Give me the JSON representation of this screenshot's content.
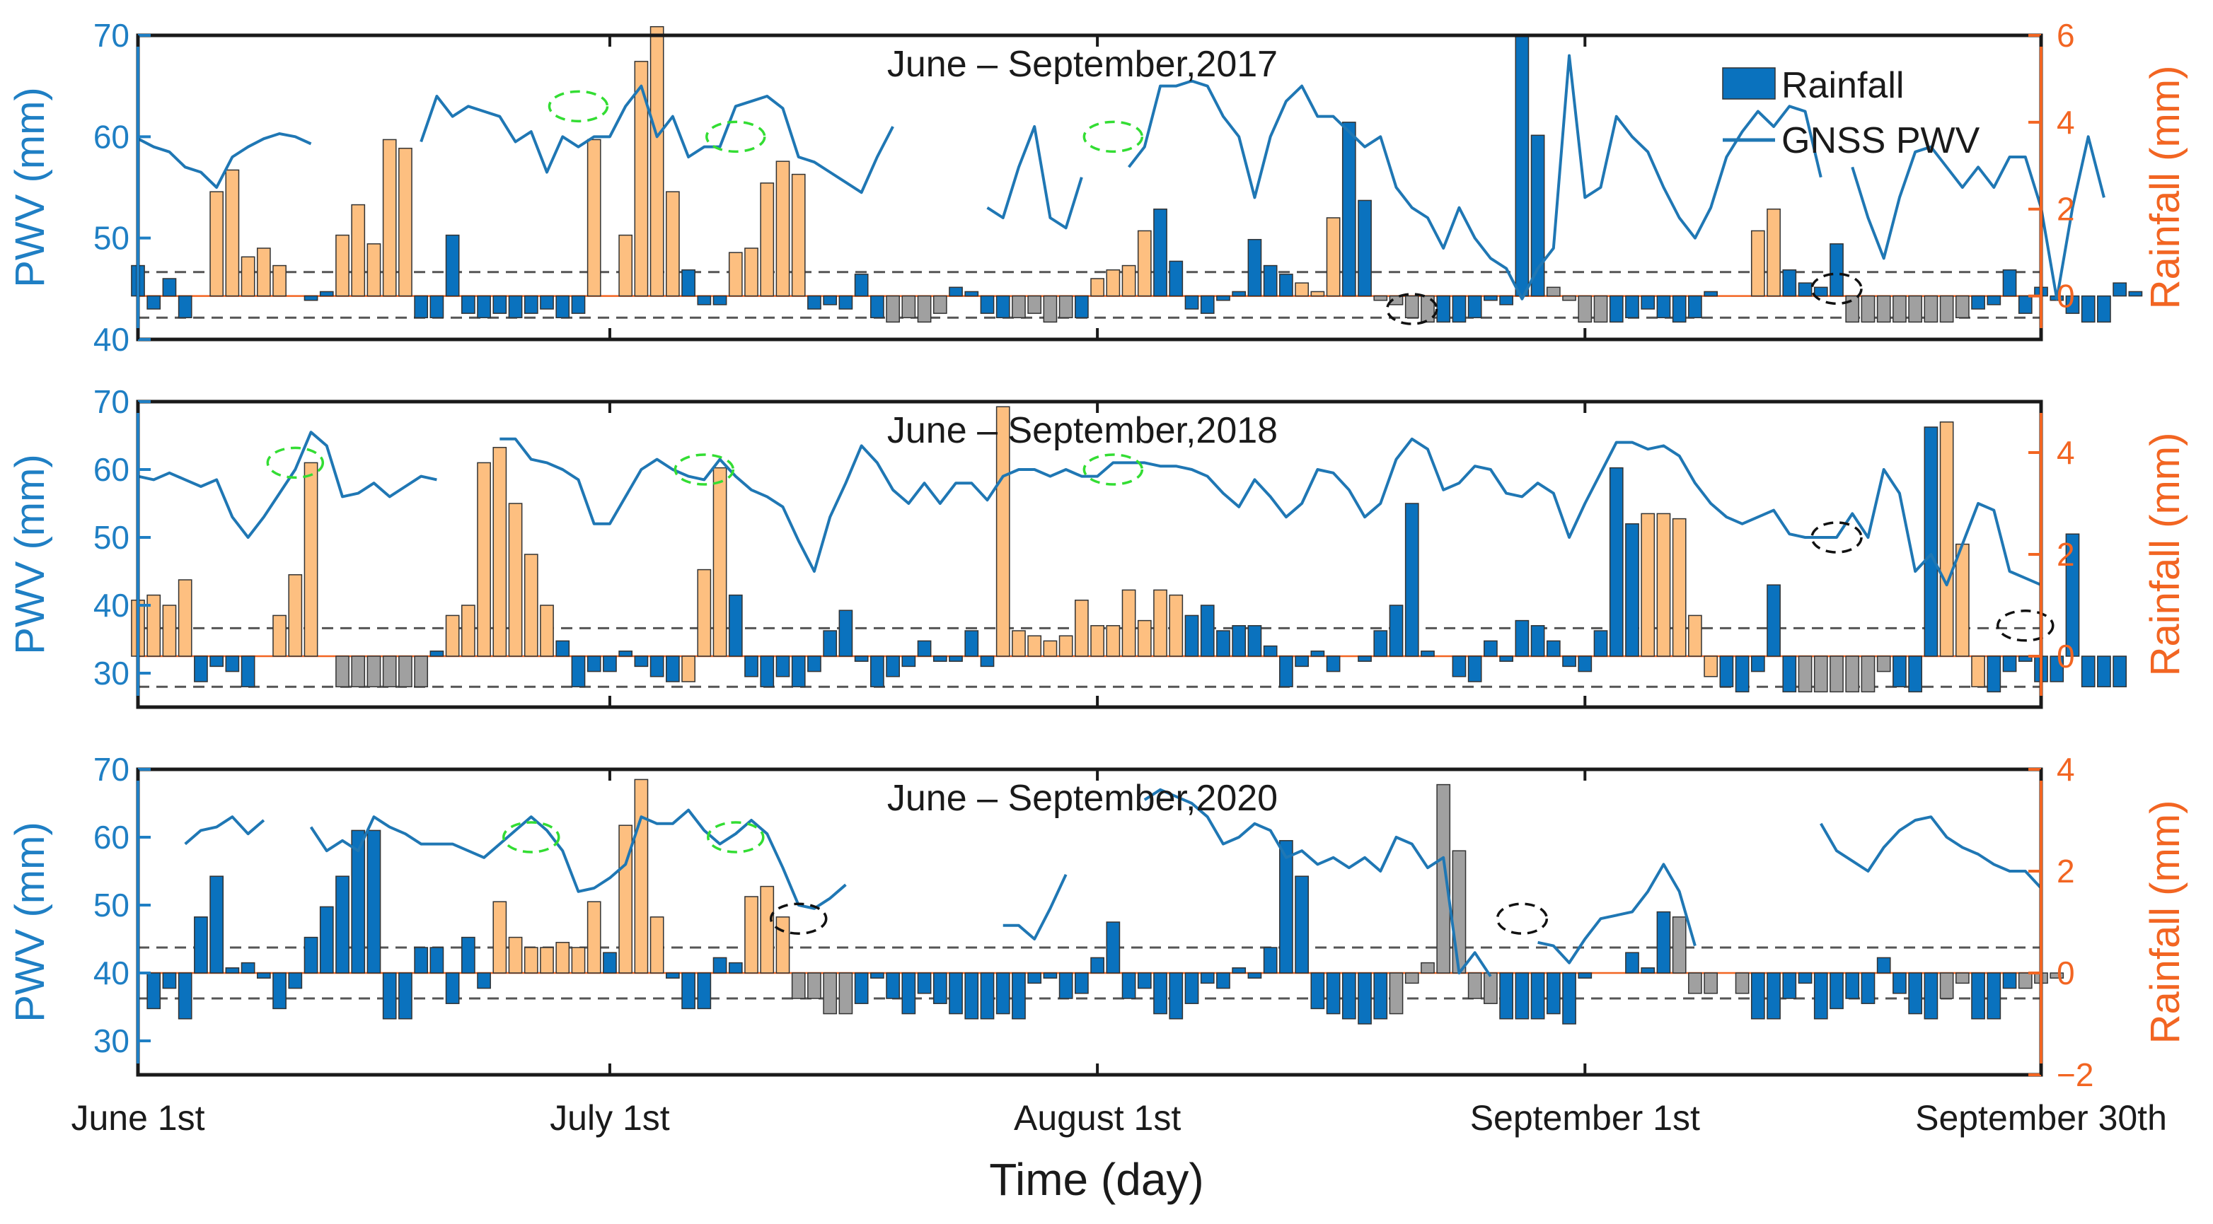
{
  "colors": {
    "left_axis": "#1f7fc4",
    "right_axis": "#f26522",
    "normal_bar": "#0a72be",
    "wet_bar": "#fdbf80",
    "dry_bar": "#a0a0a0",
    "line": "#1f77b4",
    "wet_ellipse": "#33dd33",
    "dry_ellipse": "#111111"
  },
  "xaxis": {
    "label": "Time (day)",
    "ticks": [
      {
        "day": 1,
        "label": "June 1st"
      },
      {
        "day": 31,
        "label": "July 1st"
      },
      {
        "day": 62,
        "label": "August 1st"
      },
      {
        "day": 93,
        "label": "September 1st"
      },
      {
        "day": 122,
        "label": "September 30th"
      }
    ]
  },
  "chart_data": [
    {
      "type": "bar+line",
      "title": "June – September,2017",
      "ylabel_left": "PWV (mm)",
      "ylabel_right": "Rainfall (mm)",
      "ylim_left": [
        40,
        70
      ],
      "yticks_left": [
        "40",
        "50",
        "60",
        "70"
      ],
      "ylim_right": [
        -1,
        6
      ],
      "yticks_right": [
        "0",
        "2",
        "4",
        "6"
      ],
      "thresholds": [
        0.55,
        -0.5
      ],
      "legend": [
        "Rainfall",
        "GNSS PWV"
      ],
      "x": [
        1,
        122
      ],
      "rainfall": [
        0.7,
        -0.3,
        0.4,
        -0.5,
        0,
        2.4,
        2.9,
        0.9,
        1.1,
        0.7,
        0,
        -0.1,
        0.1,
        1.4,
        2.1,
        1.2,
        3.6,
        3.4,
        -0.5,
        -0.5,
        1.4,
        -0.4,
        -0.5,
        -0.4,
        -0.5,
        -0.4,
        -0.3,
        -0.5,
        -0.4,
        3.6,
        0,
        1.4,
        5.4,
        6.2,
        2.4,
        0.6,
        -0.2,
        -0.2,
        1.0,
        1.1,
        2.6,
        3.1,
        2.8,
        -0.3,
        -0.2,
        -0.3,
        0.5,
        -0.5,
        -0.6,
        -0.5,
        -0.6,
        -0.4,
        0.2,
        0.1,
        -0.4,
        -0.5,
        -0.5,
        -0.4,
        -0.6,
        -0.5,
        -0.5,
        0.4,
        0.6,
        0.7,
        1.5,
        2.0,
        0.8,
        -0.3,
        -0.4,
        -0.1,
        0.1,
        1.3,
        0.7,
        0.5,
        0.3,
        0.1,
        1.8,
        4.0,
        2.2,
        -0.1,
        -0.2,
        -0.5,
        -0.6,
        -0.6,
        -0.6,
        -0.5,
        -0.1,
        -0.2,
        6.0,
        3.7,
        0.2,
        -0.1,
        -0.6,
        -0.6,
        -0.6,
        -0.5,
        -0.3,
        -0.5,
        -0.6,
        -0.5,
        0.1,
        0.0,
        0.0,
        1.5,
        2.0,
        0.6,
        0.3,
        0.2,
        1.2,
        -0.6,
        -0.6,
        -0.6,
        -0.6,
        -0.6,
        -0.6,
        -0.6,
        -0.5,
        -0.3,
        -0.2,
        0.6,
        -0.4,
        0.2,
        -0.1,
        -0.4,
        -0.6,
        -0.6,
        0.3,
        0.1
      ],
      "rain_class": "nnnnnwwwwwnnnwwwwwnnnnnnnnnnnwnwwwwnnnwwwwwnnnnnddddnnnnddddnwwwwnnnnnnnnnwwwnnddddnnnnnnnddddnnnnnnnnwwwnnnnddddddddnnnnnnnnnn",
      "pwv": [
        59.8,
        59,
        58.5,
        57,
        56.5,
        55,
        58,
        59,
        59.8,
        60.3,
        60,
        59.3,
        null,
        null,
        null,
        null,
        null,
        null,
        59.5,
        64,
        62,
        63,
        62.5,
        62,
        59.5,
        60.5,
        56.5,
        60,
        59,
        60,
        60,
        63,
        65,
        60,
        62,
        58,
        59,
        59,
        63,
        63.5,
        64,
        62.8,
        58,
        57.5,
        56.5,
        55.5,
        54.5,
        58,
        61,
        null,
        null,
        null,
        null,
        null,
        53,
        52,
        57,
        61,
        52,
        51,
        56,
        null,
        null,
        57,
        59,
        65,
        65,
        65.5,
        65,
        62,
        60,
        54,
        60,
        63.5,
        65,
        62,
        62,
        60.5,
        59,
        60,
        55,
        53,
        52,
        49,
        53,
        50,
        48,
        47,
        44,
        47,
        49,
        68,
        54,
        55,
        62,
        60,
        58.5,
        55,
        52,
        50,
        53,
        58,
        60.5,
        62.5,
        61,
        63,
        62.5,
        56,
        null,
        57,
        52,
        48,
        54,
        58.5,
        59,
        57,
        55,
        57,
        55,
        58,
        58,
        53,
        44,
        53,
        60,
        54
      ]
    },
    {
      "type": "bar+line",
      "title": "June – September,2018",
      "ylabel_left": "PWV (mm)",
      "ylabel_right": "Rainfall (mm)",
      "ylim_left": [
        25,
        70
      ],
      "yticks_left": [
        "30",
        "40",
        "50",
        "60",
        "70"
      ],
      "ylim_right": [
        -1,
        5
      ],
      "yticks_right": [
        "0",
        "2",
        "4"
      ],
      "thresholds": [
        0.55,
        -0.6
      ],
      "legend": [],
      "x": [
        1,
        122
      ],
      "rainfall": [
        1.1,
        1.2,
        1.0,
        1.5,
        -0.5,
        -0.2,
        -0.3,
        -0.6,
        0,
        0.8,
        1.6,
        3.8,
        0.0,
        -0.6,
        -0.6,
        -0.6,
        -0.6,
        -0.6,
        -0.6,
        0.1,
        0.8,
        1.0,
        3.8,
        4.1,
        3.0,
        2.0,
        1.0,
        0.3,
        -0.6,
        -0.3,
        -0.3,
        0.1,
        -0.2,
        -0.4,
        -0.5,
        -0.5,
        1.7,
        3.7,
        1.2,
        -0.4,
        -0.6,
        -0.4,
        -0.6,
        -0.3,
        0.5,
        0.9,
        -0.1,
        -0.6,
        -0.4,
        -0.2,
        0.3,
        -0.1,
        -0.1,
        0.5,
        -0.2,
        4.9,
        0.5,
        0.4,
        0.3,
        0.4,
        1.1,
        0.6,
        0.6,
        1.3,
        0.7,
        1.3,
        1.2,
        0.8,
        1.0,
        0.5,
        0.6,
        0.6,
        0.2,
        -0.6,
        -0.2,
        0.1,
        -0.3,
        0,
        -0.1,
        0.5,
        1.0,
        3.0,
        0.1,
        0,
        -0.4,
        -0.5,
        0.3,
        -0.1,
        0.7,
        0.6,
        0.3,
        -0.2,
        -0.3,
        0.5,
        3.7,
        2.6,
        2.8,
        2.8,
        2.7,
        0.8,
        -0.4,
        -0.6,
        -0.7,
        -0.3,
        1.4,
        -0.7,
        -0.7,
        -0.7,
        -0.7,
        -0.7,
        -0.7,
        -0.3,
        -0.6,
        -0.7,
        4.5,
        4.6,
        2.2,
        -0.6,
        -0.7,
        -0.3,
        -0.1,
        -0.5,
        -0.5,
        2.4,
        -0.6,
        -0.6,
        -0.6
      ],
      "rain_class": "wwwwnnnnnwwwnddddddnwwwwwwwnnnnnnnnwwwnnnnnnnnnnnnnnnnnwwwwwwwwwwwwnnnnnnnnnnnnnnnnnnnnnnnnnnnnnwwwwwnnnnnddddddnnnwwwnnnnnnnnnd",
      "pwv": [
        59,
        58.5,
        59.5,
        58.5,
        57.5,
        58.5,
        53,
        50,
        53,
        56.5,
        60,
        65.5,
        63.5,
        56,
        56.5,
        58,
        56,
        57.5,
        59,
        58.5,
        null,
        null,
        null,
        64.5,
        64.5,
        61.5,
        61,
        60,
        58.5,
        52,
        52,
        56,
        60,
        61.5,
        60,
        59,
        58.5,
        61.5,
        59,
        57,
        56,
        54.5,
        49.5,
        45,
        53,
        58,
        63.5,
        61,
        57,
        55,
        58,
        55,
        58,
        58,
        55.5,
        59,
        60,
        60,
        59,
        60,
        59,
        59,
        61,
        61,
        61,
        60.5,
        60.5,
        60,
        59,
        56.5,
        54.5,
        58.5,
        56,
        53,
        55,
        60,
        59.5,
        57,
        53,
        55,
        61.5,
        64.5,
        63,
        57,
        58,
        60.5,
        60,
        56.5,
        56,
        58,
        56.5,
        50,
        55,
        59.5,
        64,
        64,
        63,
        63.5,
        62,
        58,
        55,
        53,
        52,
        53,
        54,
        50.5,
        50,
        50,
        50,
        53.5,
        50,
        60,
        56.5,
        45,
        47.5,
        43,
        49,
        55,
        54,
        45,
        44,
        43,
        null
      ]
    },
    {
      "type": "bar+line",
      "title": "June – September,2020",
      "ylabel_left": "PWV (mm)",
      "ylabel_right": "Rainfall (mm)",
      "ylim_left": [
        25,
        70
      ],
      "yticks_left": [
        "30",
        "40",
        "50",
        "60",
        "70"
      ],
      "ylim_right": [
        -2,
        4
      ],
      "yticks_right": [
        "−2",
        "0",
        "2",
        "4"
      ],
      "thresholds": [
        0.5,
        -0.5
      ],
      "legend": [],
      "x": [
        1,
        122
      ],
      "rainfall": [
        0,
        -0.7,
        -0.3,
        -0.9,
        1.1,
        1.9,
        0.1,
        0.2,
        -0.1,
        -0.7,
        -0.3,
        0.7,
        1.3,
        1.9,
        2.8,
        2.8,
        -0.9,
        -0.9,
        0.5,
        0.5,
        -0.6,
        0.7,
        -0.3,
        1.4,
        0.7,
        0.5,
        0.5,
        0.6,
        0.5,
        1.4,
        0.4,
        2.9,
        3.8,
        1.1,
        -0.1,
        -0.7,
        -0.7,
        0.3,
        0.2,
        1.5,
        1.7,
        1.1,
        -0.5,
        -0.5,
        -0.8,
        -0.8,
        -0.6,
        -0.1,
        -0.5,
        -0.8,
        -0.4,
        -0.6,
        -0.8,
        -0.9,
        -0.9,
        -0.8,
        -0.9,
        -0.2,
        -0.1,
        -0.5,
        -0.4,
        0.3,
        1.0,
        -0.5,
        -0.3,
        -0.8,
        -0.9,
        -0.6,
        -0.2,
        -0.3,
        0.1,
        -0.1,
        0.5,
        2.6,
        1.9,
        -0.7,
        -0.8,
        -0.9,
        -1.0,
        -0.9,
        -0.8,
        -0.2,
        0.2,
        3.7,
        2.4,
        -0.5,
        -0.6,
        -0.9,
        -0.9,
        -0.9,
        -0.8,
        -1.0,
        -0.1,
        0,
        0,
        0.4,
        0.1,
        1.2,
        1.1,
        -0.4,
        -0.4,
        0.0,
        -0.4,
        -0.9,
        -0.9,
        -0.5,
        -0.2,
        -0.9,
        -0.7,
        -0.5,
        -0.6,
        0.3,
        -0.4,
        -0.8,
        -0.9,
        -0.5,
        -0.2,
        -0.9,
        -0.9,
        -0.3,
        -0.3,
        -0.2,
        -0.1
      ],
      "rain_class": "nnnnnnnnnnnnnnnnnnnnnnnwwwwwwwnwwwnnnnnwwwddddnnnnnnnnnnnnnnnnnnnnnnnnnnnnnnnnnndddddddnnnnnnnnnnndddddnnnnnnnnnnnnddnnndddnnnnnnnnn",
      "pwv": [
        null,
        null,
        null,
        59,
        61,
        61.5,
        63,
        60.5,
        62.5,
        null,
        null,
        61.5,
        58,
        59.5,
        58,
        63,
        61.5,
        60.5,
        59,
        59,
        59,
        58,
        57,
        59,
        61,
        63,
        61,
        58,
        52,
        52.5,
        54,
        56,
        63,
        62,
        62,
        64,
        61,
        59,
        60.5,
        62.5,
        60.5,
        55.5,
        50,
        49.5,
        51,
        53,
        null,
        null,
        null,
        null,
        null,
        null,
        null,
        null,
        null,
        47,
        47,
        45,
        49.5,
        54.5,
        null,
        null,
        null,
        null,
        65.5,
        67,
        66,
        65,
        63,
        59,
        60,
        62,
        61,
        57,
        58,
        56,
        57,
        55.5,
        57,
        55,
        60,
        59,
        55.5,
        57,
        40,
        43,
        39.5,
        null,
        null,
        44.5,
        44,
        41.5,
        45,
        48,
        48.5,
        49,
        52,
        56,
        52,
        44,
        null,
        null,
        null,
        null,
        null,
        null,
        null,
        62,
        58,
        56.5,
        55,
        58.5,
        61,
        62.5,
        63,
        60,
        58.5,
        57.5,
        56,
        55,
        55,
        52.5,
        null
      ]
    }
  ]
}
